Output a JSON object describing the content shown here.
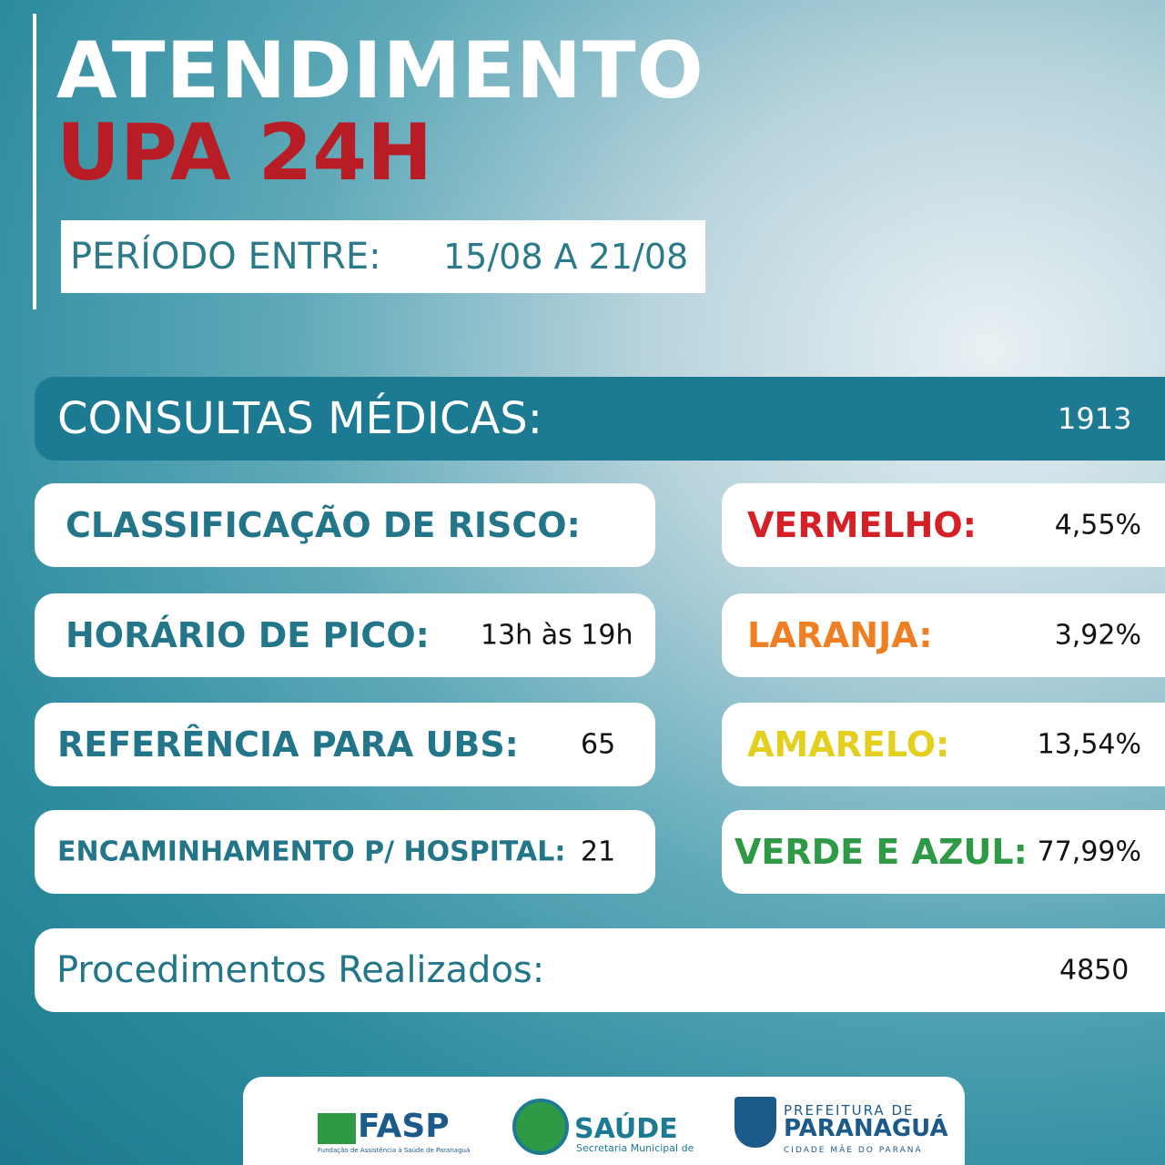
{
  "header": {
    "title": "ATENDIMENTO",
    "subtitle": "UPA 24H",
    "period": {
      "label": "PERÍODO ENTRE:",
      "value": "15/08 A 21/08"
    }
  },
  "consultations": {
    "label": "CONSULTAS MÉDICAS:",
    "value": "1913"
  },
  "left_rows": [
    {
      "label": "CLASSIFICAÇÃO DE RISCO:"
    },
    {
      "label": "HORÁRIO DE PICO:",
      "value": "13h às 19h"
    },
    {
      "label": "REFERÊNCIA PARA UBS:",
      "value": "65"
    },
    {
      "label": "ENCAMINHAMENTO P/ HOSPITAL:",
      "value": "21"
    }
  ],
  "risk_rows": [
    {
      "label": "VERMELHO:",
      "value": "4,55%",
      "color": "#d62027"
    },
    {
      "label": "LARANJA:",
      "value": "3,92%",
      "color": "#ef7f22"
    },
    {
      "label": "AMARELO:",
      "value": "13,54%",
      "color": "#e3cf1e"
    },
    {
      "label": "VERDE E AZUL:",
      "value": "77,99%",
      "color": "#2e9a45"
    }
  ],
  "procedures": {
    "label": "Procedimentos Realizados:",
    "value": "4850"
  },
  "footer": {
    "fasp": {
      "name": "FASP",
      "caption": "Fundação de Assistência à Saúde de Paranaguá"
    },
    "saude": {
      "name": "SAÚDE",
      "caption": "Secretaria Municipal de"
    },
    "prefeitura": {
      "line1": "PREFEITURA DE",
      "line2": "PARANAGUÁ",
      "caption": "CIDADE MÃE DO PARANÁ"
    }
  }
}
